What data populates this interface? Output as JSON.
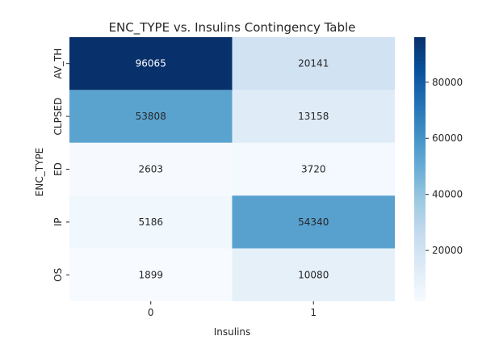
{
  "chart_data": {
    "type": "heatmap",
    "title": "ENC_TYPE vs. Insulins Contingency Table",
    "xlabel": "Insulins",
    "ylabel": "ENC_TYPE",
    "x_categories": [
      "0",
      "1"
    ],
    "y_categories": [
      "AV_TH",
      "CLPSED",
      "ED",
      "IP",
      "OS"
    ],
    "values": [
      [
        96065,
        20141
      ],
      [
        53808,
        13158
      ],
      [
        2603,
        3720
      ],
      [
        5186,
        54340
      ],
      [
        1899,
        10080
      ]
    ],
    "value_labels": [
      [
        "96065",
        "20141"
      ],
      [
        "53808",
        "13158"
      ],
      [
        "2603",
        "3720"
      ],
      [
        "5186",
        "54340"
      ],
      [
        "1899",
        "10080"
      ]
    ],
    "colorbar": {
      "min": 1899,
      "max": 96065,
      "ticks": [
        20000,
        40000,
        60000,
        80000
      ],
      "tick_labels": [
        "20000",
        "40000",
        "60000",
        "80000"
      ]
    },
    "colormap": "Blues",
    "colormap_stops": [
      "#f7fbff",
      "#deebf7",
      "#c6dbef",
      "#9ecae1",
      "#6baed6",
      "#4292c6",
      "#2171b5",
      "#08519c",
      "#08306b"
    ],
    "annotation_colors": {
      "dark": "#262626",
      "light": "#ffffff"
    }
  }
}
